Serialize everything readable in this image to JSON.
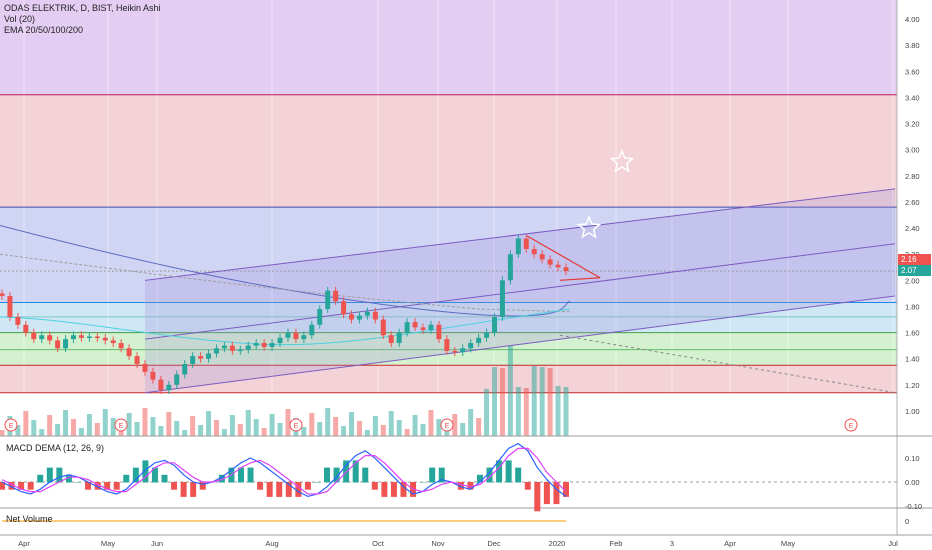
{
  "header": {
    "title": "ODAS ELEKTRIK, D, BIST, Heikin Ashi",
    "vol": "Vol (20)",
    "ema": "EMA 20/50/100/200"
  },
  "price_tags": {
    "red": "2.16",
    "green": "2.07"
  },
  "colors": {
    "purple_zone": "#e3cdf2",
    "red_zone": "#f3d3d7",
    "blue_zone": "#d1d5f4",
    "lightblue_zone": "#cfe6f5",
    "green_zone": "#d3f0cf",
    "channel": "#7b5cc2",
    "bull": "#26a69a",
    "bear": "#ef5350",
    "price_red_tag": "#ef5350",
    "price_green_tag": "#26a69a"
  },
  "chart_data": [
    {
      "type": "candlestick",
      "subtitle": "ODAS ELEKTRIK, D, BIST, Heikin Ashi",
      "y_ticks": [
        "4.00",
        "3.80",
        "3.60",
        "3.40",
        "3.20",
        "3.00",
        "2.80",
        "2.60",
        "2.40",
        "2.20",
        "2.00",
        "1.80",
        "1.60",
        "1.40",
        "1.20",
        "1.00"
      ],
      "ylim": [
        0.8,
        4.1
      ],
      "x_ticks": [
        "Apr",
        "May",
        "Jun",
        "Aug",
        "Oct",
        "Nov",
        "Dec",
        "2020",
        "Feb",
        "3",
        "Apr",
        "May",
        "Jul"
      ],
      "horizontal_levels": [
        3.42,
        2.56,
        2.07,
        1.83,
        1.72,
        1.6,
        1.47,
        1.35,
        1.14
      ],
      "price_labels": [
        2.16,
        2.07
      ],
      "trend_channel": {
        "upper": [
          [
            "Jun",
            2.0
          ],
          [
            "Jul",
            2.7
          ]
        ],
        "middle": [
          [
            "Jun",
            1.55
          ],
          [
            "Jul",
            2.28
          ]
        ],
        "lower": [
          [
            "Jun",
            1.14
          ],
          [
            "Jul",
            1.88
          ]
        ]
      },
      "earnings_markers": [
        "E",
        "E",
        "E",
        "E",
        "E"
      ],
      "series": [
        {
          "values": [
            1.88,
            1.72,
            1.66,
            1.6,
            1.55,
            1.58,
            1.54,
            1.48,
            1.55,
            1.58,
            1.56,
            1.57,
            1.56,
            1.54,
            1.52,
            1.48,
            1.42,
            1.36,
            1.3,
            1.24,
            1.16,
            1.2,
            1.28,
            1.36,
            1.42,
            1.4,
            1.44,
            1.48,
            1.5,
            1.46,
            1.47,
            1.5,
            1.52,
            1.49,
            1.52,
            1.56,
            1.6,
            1.55,
            1.58,
            1.66,
            1.78,
            1.92,
            1.84,
            1.74,
            1.7,
            1.73,
            1.76,
            1.7,
            1.58,
            1.52,
            1.6,
            1.68,
            1.64,
            1.62,
            1.66,
            1.55,
            1.46,
            1.45,
            1.48,
            1.52,
            1.56,
            1.6,
            1.72,
            2.0,
            2.2,
            2.32,
            2.24,
            2.2,
            2.16,
            2.12,
            2.1,
            2.07
          ]
        }
      ]
    },
    {
      "type": "line",
      "title": "MACD DEMA (12, 26, 9)",
      "y_ticks": [
        "0.10",
        "0.00",
        "-0.10"
      ],
      "ylim": [
        -0.16,
        0.16
      ],
      "series": [
        {
          "values": [
            0.0,
            -0.02,
            -0.04,
            -0.05,
            -0.03,
            0.0,
            0.02,
            0.03,
            0.02,
            0.0,
            -0.02,
            -0.04,
            -0.05,
            -0.03,
            0.01,
            0.05,
            0.08,
            0.09,
            0.07,
            0.03,
            0.0,
            -0.01,
            0.0,
            0.02,
            0.05,
            0.08,
            0.1,
            0.08,
            0.05,
            0.02,
            -0.01,
            -0.04,
            -0.06,
            -0.05,
            -0.02,
            0.02,
            0.07,
            0.11,
            0.13,
            0.1,
            0.06,
            0.02,
            -0.02,
            -0.05,
            -0.04,
            -0.01,
            0.01,
            0.0,
            -0.02,
            -0.03,
            0.0,
            0.04,
            0.09,
            0.14,
            0.16,
            0.13,
            0.06,
            0.01,
            -0.03,
            -0.06
          ]
        },
        {
          "values": [
            0.01,
            -0.01,
            -0.03,
            -0.04,
            -0.04,
            -0.02,
            0.0,
            0.02,
            0.02,
            0.01,
            -0.01,
            -0.03,
            -0.04,
            -0.04,
            -0.01,
            0.02,
            0.06,
            0.08,
            0.08,
            0.05,
            0.02,
            0.0,
            0.0,
            0.01,
            0.03,
            0.06,
            0.08,
            0.09,
            0.07,
            0.04,
            0.01,
            -0.02,
            -0.05,
            -0.05,
            -0.04,
            0.0,
            0.04,
            0.08,
            0.11,
            0.11,
            0.08,
            0.04,
            0.0,
            -0.03,
            -0.04,
            -0.03,
            -0.01,
            0.0,
            -0.01,
            -0.02,
            -0.01,
            0.02,
            0.06,
            0.11,
            0.14,
            0.14,
            0.1,
            0.04,
            0.0,
            -0.04
          ]
        }
      ]
    },
    {
      "type": "line",
      "title": "Net Volume",
      "y_ticks": [
        "0"
      ],
      "series": [
        {
          "values": [
            0,
            0,
            0,
            0,
            0,
            0,
            0,
            0,
            0,
            0,
            0,
            0,
            0,
            0,
            0,
            0,
            0,
            0,
            0,
            0,
            0,
            0,
            0,
            0,
            0,
            0,
            0,
            0,
            0,
            0,
            0,
            0,
            0,
            0,
            0,
            0,
            0,
            0,
            0,
            0,
            0,
            0,
            0,
            0,
            0,
            0,
            0,
            0,
            0,
            0,
            0,
            0,
            0,
            0,
            0,
            0,
            0,
            0,
            0,
            0
          ]
        }
      ]
    }
  ]
}
